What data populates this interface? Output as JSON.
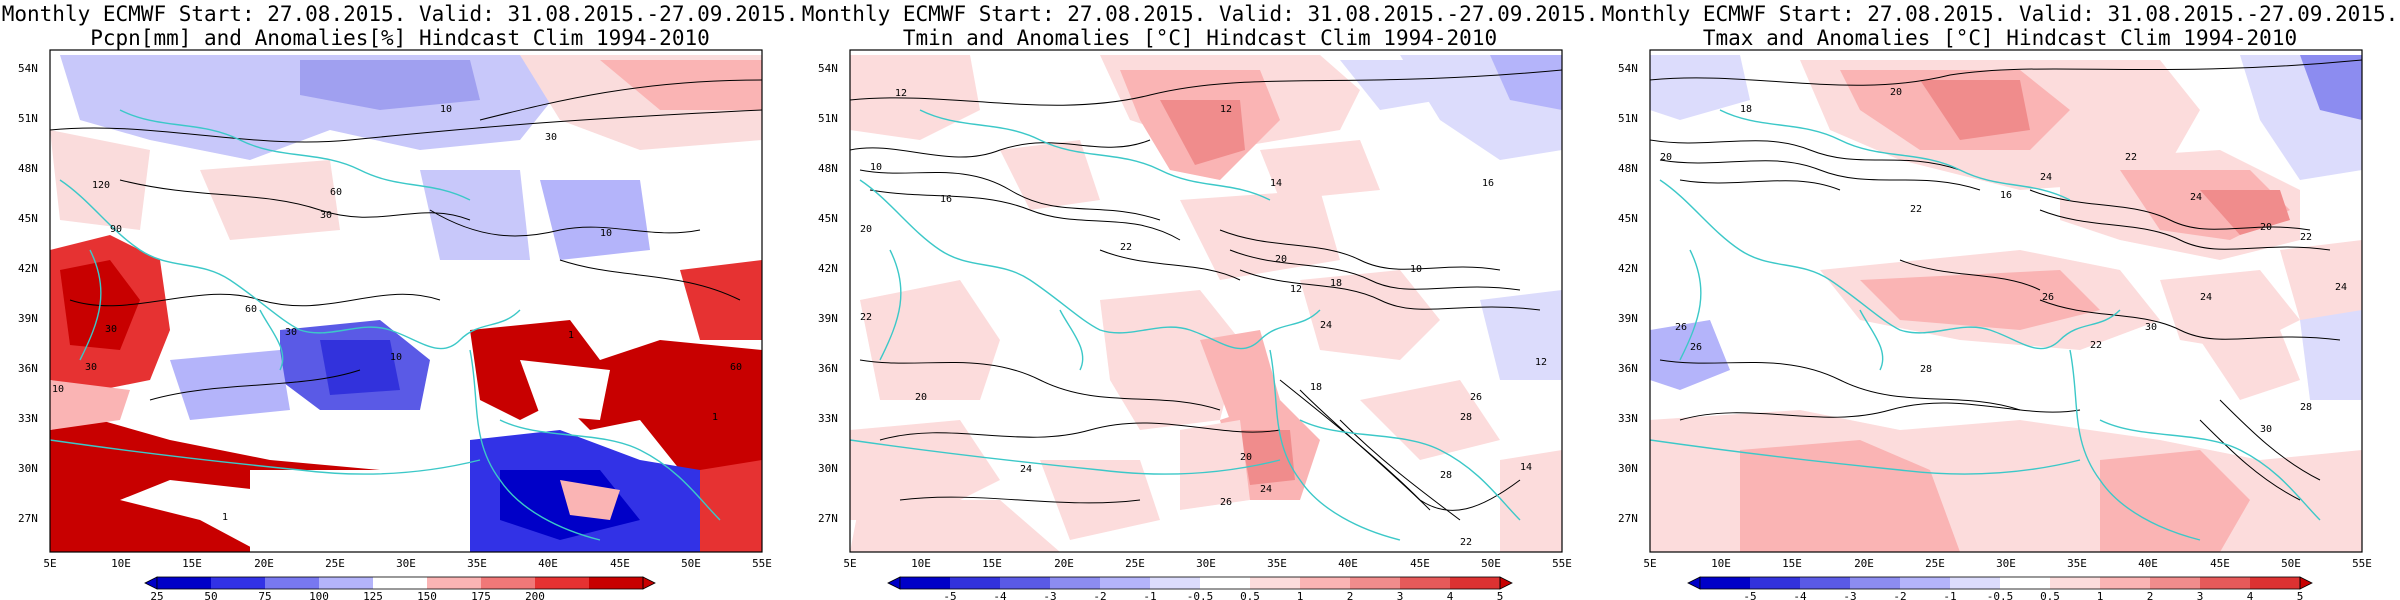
{
  "panels": [
    {
      "title_line1": "Monthly ECMWF Start: 27.08.2015. Valid: 31.08.2015.-27.09.2015.",
      "title_line2": "Pcpn[mm] and Anomalies[%] Hindcast Clim 1994-2010",
      "colorbar": [
        "25",
        "50",
        "75",
        "100",
        "125",
        "150",
        "175",
        "200"
      ],
      "colors": [
        "#0000c8",
        "#3232e6",
        "#7878f0",
        "#b4b4fa",
        "#ffffff",
        "#fab4b4",
        "#f07878",
        "#e63232",
        "#c80000"
      ],
      "contour_labels": [
        "30",
        "60",
        "10",
        "120",
        "90",
        "10",
        "30",
        "60",
        "30",
        "10",
        "60",
        "30",
        "1",
        "10",
        "30",
        "1",
        "1"
      ]
    },
    {
      "title_line1": "Monthly ECMWF Start: 27.08.2015. Valid: 31.08.2015.-27.09.2015.",
      "title_line2": "Tmin and Anomalies [°C] Hindcast Clim 1994-2010",
      "colorbar": [
        "-5",
        "-4",
        "-3",
        "-2",
        "-1",
        "-0.5",
        "0.5",
        "1",
        "2",
        "3",
        "4",
        "5"
      ],
      "colors": [
        "#0000c8",
        "#3232dc",
        "#5a5ae6",
        "#8c8cf0",
        "#b4b4fa",
        "#dcdcfc",
        "#ffffff",
        "#fcdcdc",
        "#fab4b4",
        "#f08c8c",
        "#e65a5a",
        "#dc3232",
        "#c80000"
      ],
      "contour_labels": [
        "12",
        "10",
        "14",
        "12",
        "16",
        "20",
        "22",
        "20",
        "12",
        "18",
        "10",
        "16",
        "24",
        "20",
        "22",
        "24",
        "28",
        "26",
        "18",
        "14",
        "22",
        "20",
        "12",
        "26",
        "24",
        "28"
      ]
    },
    {
      "title_line1": "Monthly ECMWF Start: 27.08.2015. Valid: 31.08.2015.-27.09.2015.",
      "title_line2": "Tmax and Anomalies [°C] Hindcast Clim 1994-2010",
      "colorbar": [
        "-5",
        "-4",
        "-3",
        "-2",
        "-1",
        "-0.5",
        "0.5",
        "1",
        "2",
        "3",
        "4",
        "5"
      ],
      "colors": [
        "#0000c8",
        "#3232dc",
        "#5a5ae6",
        "#8c8cf0",
        "#b4b4fa",
        "#dcdcfc",
        "#ffffff",
        "#fcdcdc",
        "#fab4b4",
        "#f08c8c",
        "#e65a5a",
        "#dc3232",
        "#c80000"
      ],
      "contour_labels": [
        "18",
        "20",
        "22",
        "24",
        "16",
        "20",
        "22",
        "26",
        "24",
        "30",
        "22",
        "26",
        "28",
        "24",
        "26",
        "28",
        "30",
        "22",
        "20",
        "24"
      ]
    }
  ],
  "map": {
    "lat_labels": [
      "54N",
      "51N",
      "48N",
      "45N",
      "42N",
      "39N",
      "36N",
      "33N",
      "30N",
      "27N"
    ],
    "lon_labels": [
      "5E",
      "10E",
      "15E",
      "20E",
      "25E",
      "30E",
      "35E",
      "40E",
      "45E",
      "50E",
      "55E"
    ]
  },
  "legend_colors": {
    "coast": "#3cc8c8",
    "contour": "#000000"
  }
}
